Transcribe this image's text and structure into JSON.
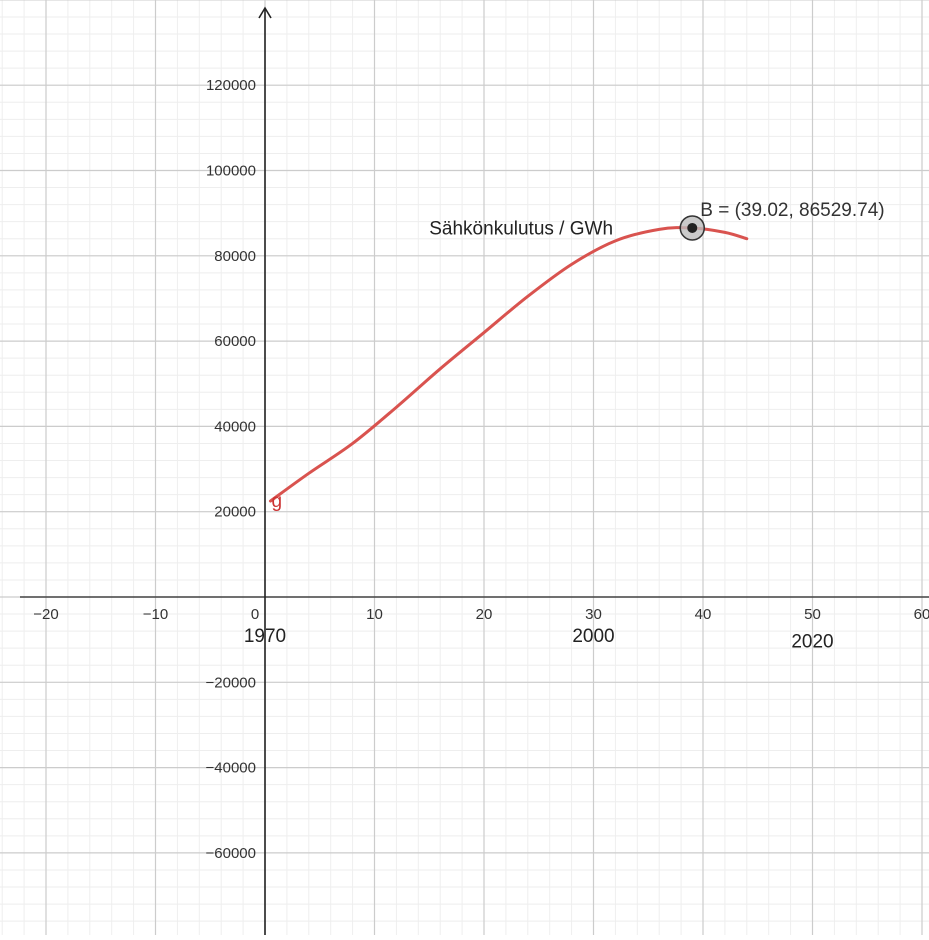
{
  "chart_data": {
    "type": "line",
    "grid": true,
    "xlim": [
      -22.5,
      60
    ],
    "ylim": [
      -80000,
      140000
    ],
    "x_ticks": [
      -20,
      -10,
      0,
      10,
      20,
      30,
      40,
      50,
      60
    ],
    "y_ticks": [
      -60000,
      -40000,
      -20000,
      20000,
      40000,
      60000,
      80000,
      100000,
      120000
    ],
    "x_tick_labels": [
      "−20",
      "−10",
      "0",
      "10",
      "20",
      "30",
      "40",
      "50",
      "60"
    ],
    "y_tick_labels": [
      "−60000",
      "−40000",
      "−20000",
      "20000",
      "40000",
      "60000",
      "80000",
      "100000",
      "120000"
    ],
    "series": [
      {
        "name": "g",
        "color": "#d9534f",
        "x": [
          0.5,
          4,
          8,
          12,
          16,
          20,
          24,
          28,
          32,
          36,
          39.02,
          42,
          44
        ],
        "y": [
          22500,
          29000,
          36000,
          44500,
          53500,
          62000,
          70500,
          78000,
          83500,
          86200,
          86529.74,
          85500,
          84000
        ]
      }
    ],
    "points": [
      {
        "name": "B",
        "x": 39.02,
        "y": 86529.74,
        "label": "B = (39.02, 86529.74)"
      }
    ],
    "annotations": [
      {
        "text": "Sähkönkulutus / GWh",
        "x": 15,
        "y": 85000
      },
      {
        "text": "1970",
        "x": 0,
        "y": -10500
      },
      {
        "text": "2000",
        "x": 30,
        "y": -10500
      },
      {
        "text": "2020",
        "x": 50,
        "y": -11800
      }
    ]
  }
}
